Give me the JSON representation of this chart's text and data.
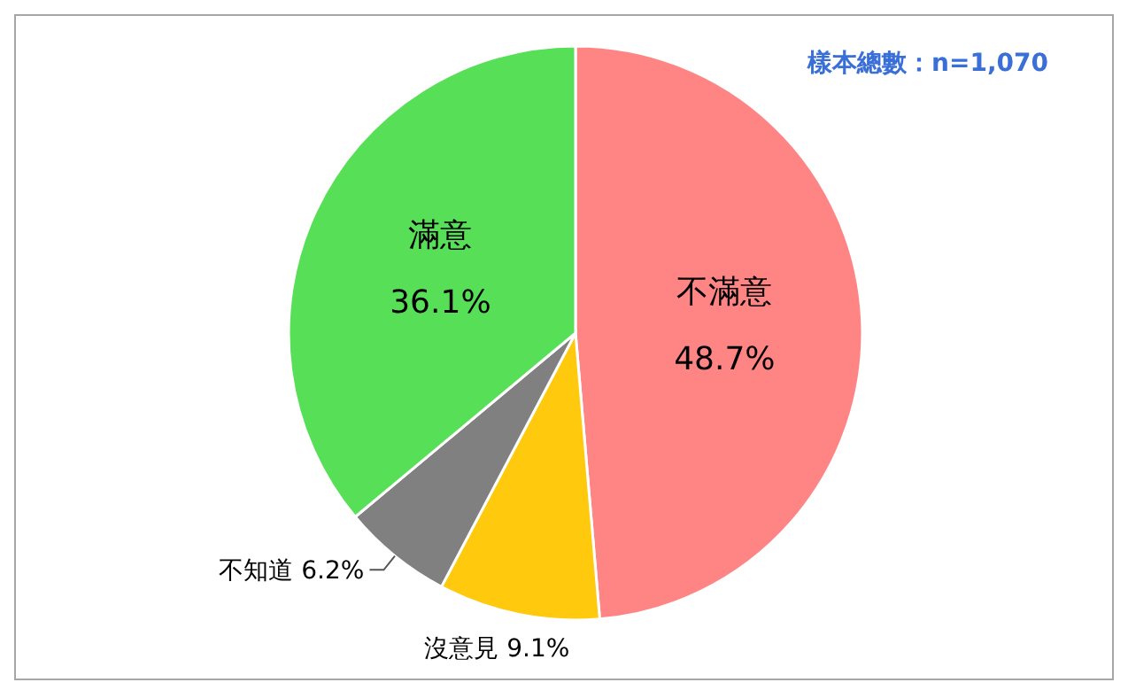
{
  "chart_data": {
    "type": "pie",
    "categories": [
      "不滿意",
      "沒意見",
      "不知道",
      "滿意"
    ],
    "values": [
      48.7,
      9.1,
      6.2,
      36.1
    ],
    "value_labels": [
      "48.7%",
      "9.1%",
      "6.2%",
      "36.1%"
    ],
    "colors": [
      "#ff8585",
      "#ffc90e",
      "#808080",
      "#57e057"
    ],
    "annotations": [
      "樣本總數：n=1,070"
    ]
  }
}
